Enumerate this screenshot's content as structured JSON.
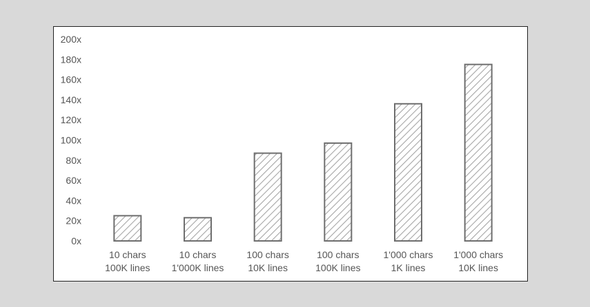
{
  "chart_data": {
    "type": "bar",
    "title": "",
    "xlabel": "",
    "ylabel": "",
    "ylim": [
      0,
      200
    ],
    "yticks": [
      "0x",
      "20x",
      "40x",
      "60x",
      "80x",
      "100x",
      "120x",
      "140x",
      "160x",
      "180x",
      "200x"
    ],
    "ytick_values": [
      0,
      20,
      40,
      60,
      80,
      100,
      120,
      140,
      160,
      180,
      200
    ],
    "grid": false,
    "legend": "none",
    "categories": [
      [
        "10 chars",
        "100K lines"
      ],
      [
        "10 chars",
        "1'000K lines"
      ],
      [
        "100 chars",
        "10K lines"
      ],
      [
        "100 chars",
        "100K lines"
      ],
      [
        "1'000 chars",
        "1K lines"
      ],
      [
        "1'000 chars",
        "10K lines"
      ]
    ],
    "values": [
      25,
      23,
      87,
      97,
      136,
      175
    ],
    "colors": {
      "bar_stroke": "#6e6e6e",
      "bar_hatch": "#a6a6a6",
      "text": "#555555",
      "frame": "#222222",
      "background": "#d9d9d9"
    }
  }
}
